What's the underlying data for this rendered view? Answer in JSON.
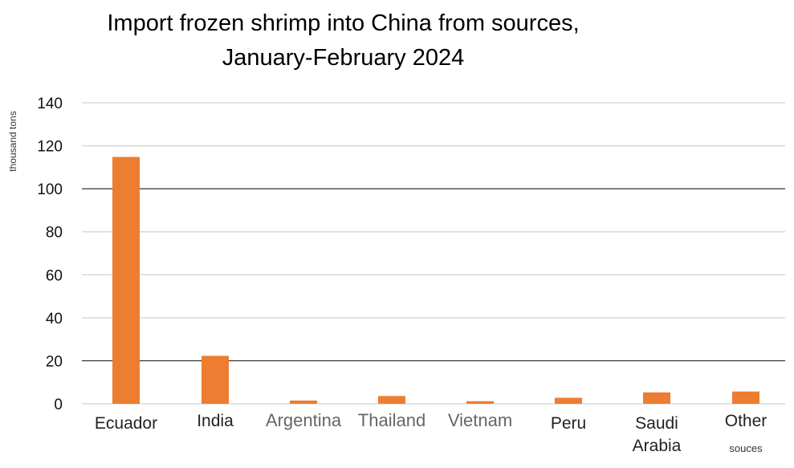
{
  "chart_data": {
    "type": "bar",
    "title": [
      "Import frozen shrimp into China from sources,",
      "January-February 2024"
    ],
    "ylabel": "thousand tons",
    "xlabel": "",
    "ylim": [
      0,
      140
    ],
    "yticks": [
      0,
      20,
      40,
      60,
      80,
      100,
      120,
      140
    ],
    "categories": [
      "Ecuador",
      "India",
      "Argentina",
      "Thailand",
      "Vietnam",
      "Peru",
      "Saudi Arabia",
      "Other souces"
    ],
    "category_label_lines": [
      [
        "Ecuador"
      ],
      [
        "India"
      ],
      [
        "Argentina"
      ],
      [
        "Thailand"
      ],
      [
        "Vietnam"
      ],
      [
        "Peru"
      ],
      [
        "Saudi",
        "Arabia"
      ],
      [
        "Other",
        "souces"
      ]
    ],
    "values": [
      114.8,
      22.3,
      1.5,
      3.6,
      1.2,
      2.8,
      5.3,
      5.7
    ],
    "bar_color": "#ED7D31",
    "grid": true
  }
}
